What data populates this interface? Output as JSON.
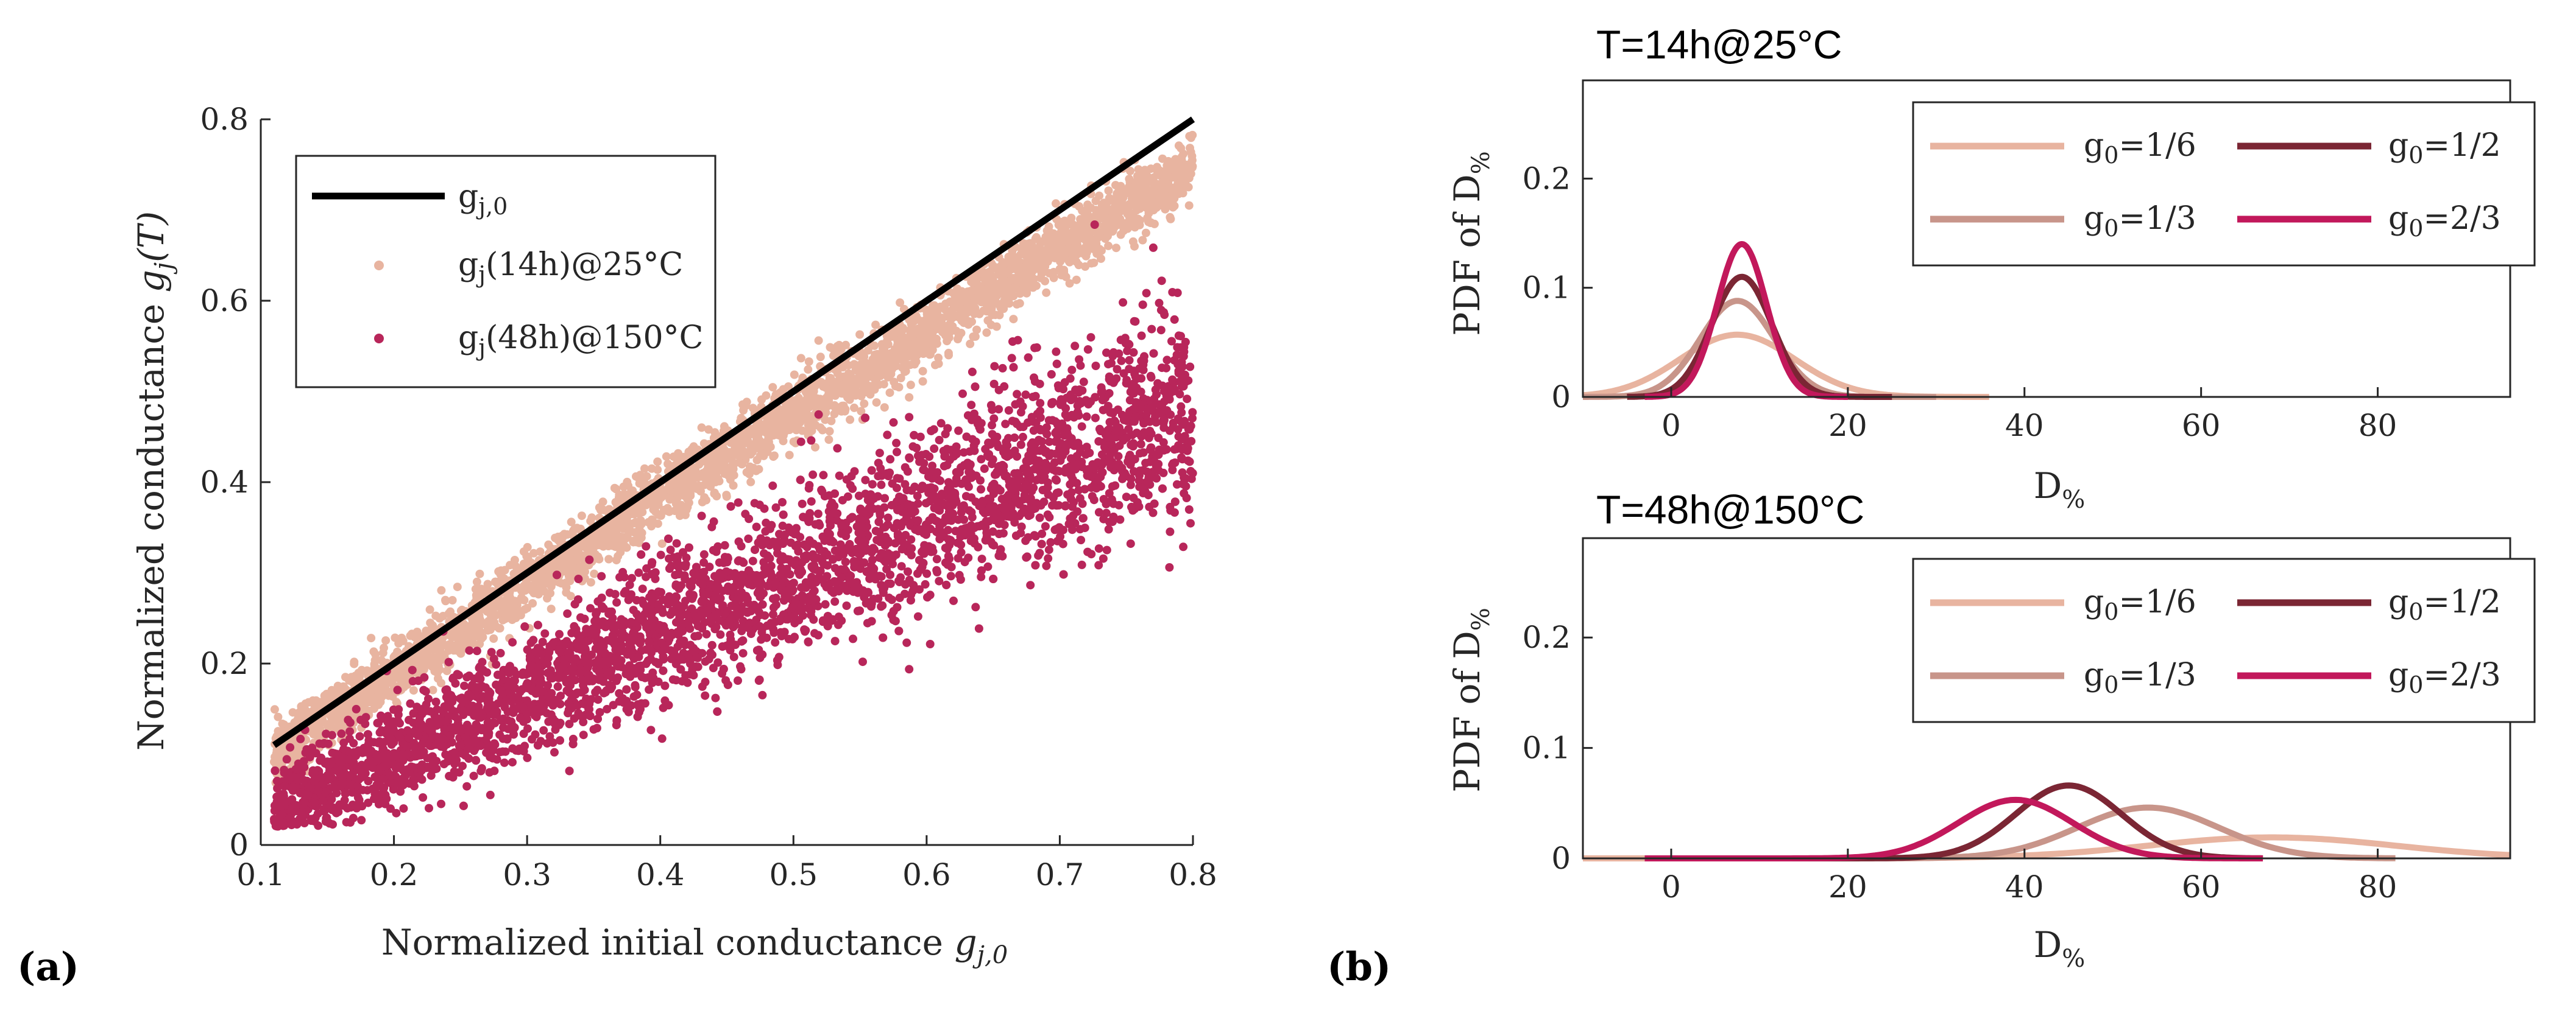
{
  "panels": {
    "a": "(a)",
    "b": "(b)"
  },
  "chart_data": [
    {
      "type": "scatter",
      "panel": "a",
      "xlabel_main": "Normalized initial conductance ",
      "xlabel_var": "g",
      "xlabel_sub": "j,0",
      "ylabel_main": "Normalized conductance ",
      "ylabel_var": "g",
      "ylabel_sub": "j",
      "ylabel_tail": "(T)",
      "xlim": [
        0.1,
        0.8
      ],
      "ylim": [
        0,
        0.8
      ],
      "xticks": [
        0.1,
        0.2,
        0.3,
        0.4,
        0.5,
        0.6,
        0.7,
        0.8
      ],
      "yticks": [
        0,
        0.2,
        0.4,
        0.6,
        0.8
      ],
      "grid": false,
      "legend_position": "top-left",
      "series": [
        {
          "name_main": "g",
          "name_sub": "j,0",
          "name_tail": "",
          "kind": "line",
          "color": "#000000",
          "x": [
            0.11,
            0.8
          ],
          "y": [
            0.11,
            0.8
          ]
        },
        {
          "name_main": "g",
          "name_sub": "j",
          "name_tail": "(14h)@25°C",
          "kind": "scatter",
          "color": "#E8B4A0",
          "x_range": [
            0.11,
            0.8
          ],
          "mean_y": [
            [
              0.11,
              0.1
            ],
            [
              0.2,
              0.19
            ],
            [
              0.3,
              0.285
            ],
            [
              0.4,
              0.385
            ],
            [
              0.5,
              0.475
            ],
            [
              0.6,
              0.565
            ],
            [
              0.7,
              0.66
            ],
            [
              0.8,
              0.745
            ]
          ],
          "spread": 0.018
        },
        {
          "name_main": "g",
          "name_sub": "j",
          "name_tail": "(48h)@150°C",
          "kind": "scatter",
          "color": "#B8265A",
          "x_range": [
            0.11,
            0.8
          ],
          "mean_y": [
            [
              0.11,
              0.04
            ],
            [
              0.2,
              0.1
            ],
            [
              0.3,
              0.165
            ],
            [
              0.4,
              0.235
            ],
            [
              0.5,
              0.3
            ],
            [
              0.6,
              0.365
            ],
            [
              0.7,
              0.43
            ],
            [
              0.8,
              0.48
            ]
          ],
          "spread": 0.04
        }
      ]
    },
    {
      "type": "line",
      "panel": "b-top",
      "title": "T=14h@25°C",
      "xlabel_main": "D",
      "xlabel_sub": "%",
      "ylabel_main": "PDF of D",
      "ylabel_sub": "%",
      "xlim": [
        -10,
        95
      ],
      "ylim": [
        0,
        0.29
      ],
      "xticks": [
        0,
        20,
        40,
        60,
        80
      ],
      "yticks": [
        0,
        0.1,
        0.2
      ],
      "legend_position": "top-right",
      "series": [
        {
          "name_main": "g",
          "name_sub": "0",
          "name_tail": "=1/6",
          "color": "#E8B4A0",
          "mu": 7.5,
          "sigma": 6.5,
          "peak": 0.057,
          "range": [
            -10,
            36
          ]
        },
        {
          "name_main": "g",
          "name_sub": "0",
          "name_tail": "=1/3",
          "color": "#C8958A",
          "mu": 7.5,
          "sigma": 4.2,
          "peak": 0.088,
          "range": [
            -10,
            30
          ]
        },
        {
          "name_main": "g",
          "name_sub": "0",
          "name_tail": "=1/2",
          "color": "#7B2634",
          "mu": 8,
          "sigma": 3.4,
          "peak": 0.11,
          "range": [
            -5,
            25
          ]
        },
        {
          "name_main": "g",
          "name_sub": "0",
          "name_tail": "=2/3",
          "color": "#C2185B",
          "mu": 8,
          "sigma": 2.8,
          "peak": 0.14,
          "range": [
            -3,
            20
          ]
        }
      ]
    },
    {
      "type": "line",
      "panel": "b-bottom",
      "title": "T=48h@150°C",
      "xlabel_main": "D",
      "xlabel_sub": "%",
      "ylabel_main": "PDF of D",
      "ylabel_sub": "%",
      "xlim": [
        -10,
        95
      ],
      "ylim": [
        0,
        0.29
      ],
      "xticks": [
        0,
        20,
        40,
        60,
        80
      ],
      "yticks": [
        0,
        0.1,
        0.2
      ],
      "legend_position": "top-right",
      "series": [
        {
          "name_main": "g",
          "name_sub": "0",
          "name_tail": "=1/6",
          "color": "#E8B4A0",
          "mu": 68,
          "sigma": 14,
          "peak": 0.019,
          "range": [
            -10,
            95
          ]
        },
        {
          "name_main": "g",
          "name_sub": "0",
          "name_tail": "=1/3",
          "color": "#C8958A",
          "mu": 54,
          "sigma": 8,
          "peak": 0.046,
          "range": [
            -3,
            82
          ]
        },
        {
          "name_main": "g",
          "name_sub": "0",
          "name_tail": "=1/2",
          "color": "#7B2634",
          "mu": 45,
          "sigma": 6,
          "peak": 0.066,
          "range": [
            -3,
            67
          ]
        },
        {
          "name_main": "g",
          "name_sub": "0",
          "name_tail": "=2/3",
          "color": "#C2185B",
          "mu": 39,
          "sigma": 6.5,
          "peak": 0.053,
          "range": [
            -3,
            67
          ]
        }
      ]
    }
  ]
}
